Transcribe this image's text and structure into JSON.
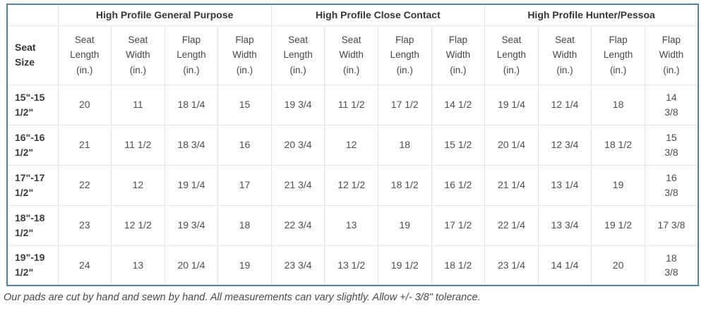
{
  "colors": {
    "table_border": "#4e84ae",
    "cell_border": "#e4e4e6",
    "header_text": "#363636",
    "body_text": "#4e4e4e"
  },
  "chart_data": {
    "type": "table",
    "column_groups": [
      "High Profile General Purpose",
      "High Profile Close Contact",
      "High Profile Hunter/Pessoa"
    ],
    "row_header": "Seat\nSize",
    "sub_columns": [
      "Seat\nLength\n(in.)",
      "Seat\nWidth\n(in.)",
      "Flap\nLength\n(in.)",
      "Flap\nWidth\n(in.)"
    ],
    "rows": [
      {
        "label": "15\"-15\n1/2\"",
        "values": [
          "20",
          "11",
          "18 1/4",
          "15",
          "19 3/4",
          "11 1/2",
          "17 1/2",
          "14 1/2",
          "19 1/4",
          "12 1/4",
          "18",
          "14\n3/8"
        ]
      },
      {
        "label": "16\"-16\n1/2\"",
        "values": [
          "21",
          "11 1/2",
          "18 3/4",
          "16",
          "20 3/4",
          "12",
          "18",
          "15 1/2",
          "20 1/4",
          "12 3/4",
          "18 1/2",
          "15\n3/8"
        ]
      },
      {
        "label": "17\"-17\n1/2\"",
        "values": [
          "22",
          "12",
          "19 1/4",
          "17",
          "21 3/4",
          "12 1/2",
          "18 1/2",
          "16 1/2",
          "21 1/4",
          "13 1/4",
          "19",
          "16\n3/8"
        ]
      },
      {
        "label": "18\"-18\n1/2\"",
        "values": [
          "23",
          "12 1/2",
          "19 3/4",
          "18",
          "22 3/4",
          "13",
          "19",
          "17 1/2",
          "22 1/4",
          "13 3/4",
          "19 1/2",
          "17 3/8"
        ]
      },
      {
        "label": "19\"-19\n1/2\"",
        "values": [
          "24",
          "13",
          "20 1/4",
          "19",
          "23 3/4",
          "13 1/2",
          "19 1/2",
          "18 1/2",
          "23 1/4",
          "14 1/4",
          "20",
          "18\n3/8"
        ]
      }
    ],
    "footnote": "Our pads are cut by hand and sewn by hand. All measurements can vary slightly. Allow +/- 3/8\" tolerance."
  }
}
